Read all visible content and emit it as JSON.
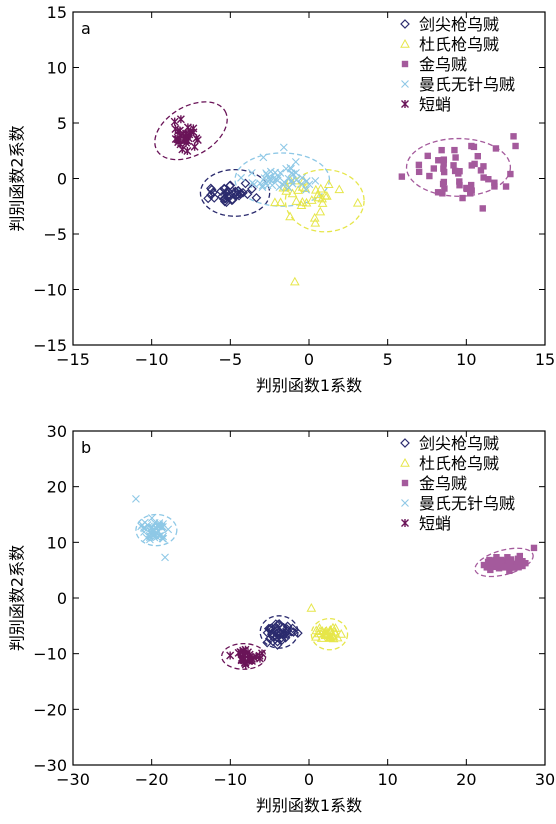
{
  "series_styles": [
    {
      "name": "剑尖枪乌贼",
      "marker": "diamond-open",
      "color": "#2b2b6e"
    },
    {
      "name": "杜氏枪乌贼",
      "marker": "triangle-open",
      "color": "#e6e64a"
    },
    {
      "name": "金乌贼",
      "marker": "square-filled",
      "color": "#a45a9c"
    },
    {
      "name": "曼氏无针乌贼",
      "marker": "x",
      "color": "#8ec8e6"
    },
    {
      "name": "短蛸",
      "marker": "star",
      "color": "#6a1458"
    }
  ],
  "chart_data": [
    {
      "type": "scatter",
      "panel_label": "a",
      "xlabel": "判别函数1系数",
      "ylabel": "判别函数2系数",
      "xlim": [
        -15,
        15
      ],
      "ylim": [
        -15,
        15
      ],
      "xticks": [
        -15,
        -10,
        -5,
        0,
        5,
        10,
        15
      ],
      "yticks": [
        -15,
        -10,
        -5,
        0,
        5,
        10,
        15
      ],
      "grid": false,
      "legend_position": "top-right",
      "series": [
        {
          "name": "剑尖枪乌贼",
          "centroid": [
            -5.0,
            -1.4
          ],
          "spread": [
            1.0,
            0.45
          ],
          "n": 40,
          "ellipse": {
            "cx": -4.7,
            "cy": -1.3,
            "rx": 2.2,
            "ry": 2.1
          }
        },
        {
          "name": "杜氏枪乌贼",
          "centroid": [
            0.0,
            -1.6
          ],
          "spread": [
            1.3,
            0.9
          ],
          "n": 30,
          "extra_points": [
            [
              -0.9,
              -9.3
            ],
            [
              0.4,
              -4.0
            ],
            [
              3.1,
              -2.2
            ]
          ],
          "ellipse": {
            "cx": 1.0,
            "cy": -2.0,
            "rx": 2.5,
            "ry": 2.8
          }
        },
        {
          "name": "金乌贼",
          "centroid": [
            9.5,
            0.7
          ],
          "spread": [
            1.6,
            1.4
          ],
          "n": 45,
          "extra_points": [
            [
              13.0,
              3.8
            ],
            [
              12.8,
              0.4
            ],
            [
              7.0,
              0.6
            ]
          ],
          "ellipse": {
            "cx": 9.5,
            "cy": 1.0,
            "rx": 3.3,
            "ry": 2.6
          }
        },
        {
          "name": "曼氏无针乌贼",
          "centroid": [
            -2.0,
            0.0
          ],
          "spread": [
            1.0,
            0.6
          ],
          "n": 45,
          "extra_points": [
            [
              -2.9,
              1.9
            ],
            [
              -1.6,
              2.8
            ],
            [
              -3.6,
              -0.4
            ]
          ],
          "ellipse": {
            "cx": -1.7,
            "cy": -0.1,
            "rx": 3.0,
            "ry": 2.4
          }
        },
        {
          "name": "短蛸",
          "centroid": [
            -7.9,
            3.8
          ],
          "spread": [
            0.35,
            0.55
          ],
          "n": 30,
          "ellipse": {
            "cx": -7.5,
            "cy": 4.3,
            "rx": 2.5,
            "ry": 2.2,
            "rotation": -30
          }
        }
      ]
    },
    {
      "type": "scatter",
      "panel_label": "b",
      "xlabel": "判别函数1系数",
      "ylabel": "判别函数2系数",
      "xlim": [
        -30,
        30
      ],
      "ylim": [
        -30,
        30
      ],
      "xticks": [
        -30,
        -20,
        -10,
        0,
        10,
        20,
        30
      ],
      "yticks": [
        -30,
        -20,
        -10,
        0,
        10,
        20,
        30
      ],
      "grid": false,
      "legend_position": "top-right",
      "series": [
        {
          "name": "剑尖枪乌贼",
          "centroid": [
            -3.8,
            -6.2
          ],
          "spread": [
            0.9,
            0.9
          ],
          "n": 40,
          "ellipse": {
            "cx": -3.8,
            "cy": -6.1,
            "rx": 2.4,
            "ry": 2.9
          }
        },
        {
          "name": "杜氏枪乌贼",
          "centroid": [
            2.5,
            -6.5
          ],
          "spread": [
            1.0,
            0.8
          ],
          "n": 30,
          "extra_points": [
            [
              0.3,
              -1.8
            ]
          ],
          "ellipse": {
            "cx": 2.6,
            "cy": -6.5,
            "rx": 2.3,
            "ry": 2.8
          }
        },
        {
          "name": "金乌贼",
          "centroid": [
            25.0,
            6.0
          ],
          "spread": [
            1.3,
            0.5
          ],
          "n": 45,
          "extra_points": [
            [
              28.6,
              9.0
            ],
            [
              22.6,
              5.5
            ]
          ],
          "ellipse": {
            "cx": 24.8,
            "cy": 6.4,
            "rx": 3.8,
            "ry": 2.2,
            "rotation": -15
          }
        },
        {
          "name": "曼氏无针乌贼",
          "centroid": [
            -19.5,
            12.3
          ],
          "spread": [
            0.9,
            0.9
          ],
          "n": 45,
          "extra_points": [
            [
              -22.0,
              17.8
            ],
            [
              -18.3,
              7.3
            ]
          ],
          "ellipse": {
            "cx": -19.4,
            "cy": 12.2,
            "rx": 2.6,
            "ry": 2.8
          }
        },
        {
          "name": "短蛸",
          "centroid": [
            -8.0,
            -10.5
          ],
          "spread": [
            1.0,
            0.6
          ],
          "n": 30,
          "ellipse": {
            "cx": -8.3,
            "cy": -10.5,
            "rx": 2.8,
            "ry": 2.3
          }
        }
      ]
    }
  ]
}
